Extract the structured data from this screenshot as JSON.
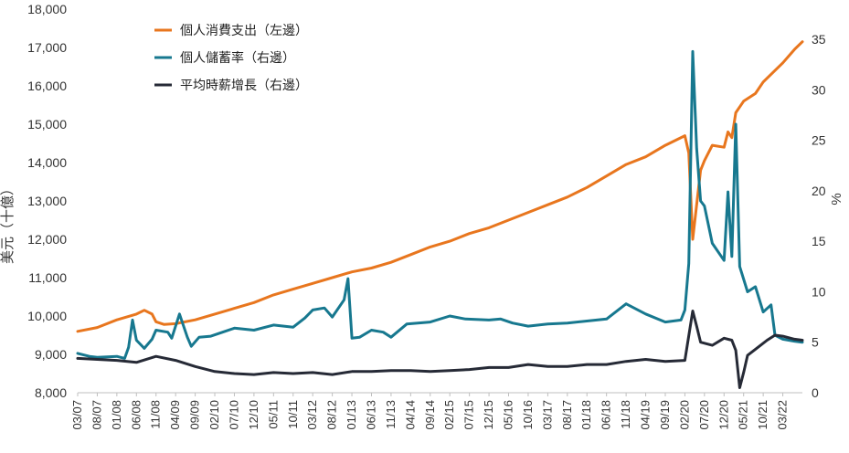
{
  "chart_data": {
    "type": "line",
    "title": "",
    "ylabel_left": "美元（十億）",
    "ylabel_right": "%",
    "ylim_left": [
      8000,
      18000
    ],
    "ylim_right": [
      0,
      38
    ],
    "yticks_left": [
      "8,000",
      "9,000",
      "10,000",
      "11,000",
      "12,000",
      "13,000",
      "14,000",
      "15,000",
      "16,000",
      "17,000",
      "18,000"
    ],
    "yticks_right": [
      "0",
      "5",
      "10",
      "15",
      "20",
      "25",
      "30",
      "35"
    ],
    "x_start": "2007-03",
    "x_end": "2022-08",
    "xtick_labels": [
      "03/07",
      "08/07",
      "01/08",
      "06/08",
      "11/08",
      "04/09",
      "09/09",
      "02/10",
      "07/10",
      "12/10",
      "05/11",
      "10/11",
      "03/12",
      "08/12",
      "01/13",
      "06/13",
      "11/13",
      "04/14",
      "09/14",
      "02/15",
      "07/15",
      "12/15",
      "05/16",
      "10/16",
      "03/17",
      "08/17",
      "01/18",
      "06/18",
      "11/18",
      "04/19",
      "09/19",
      "02/20",
      "07/20",
      "12/20",
      "05/21",
      "10/21",
      "03/22"
    ],
    "legend_position": "top-left",
    "colors": {
      "consumption": "#E8761E",
      "savings": "#17788F",
      "wages": "#262A36"
    },
    "series": [
      {
        "name": "個人消費支出（左邊）",
        "axis": "left",
        "points": [
          [
            "2007-03",
            9600
          ],
          [
            "2007-08",
            9700
          ],
          [
            "2008-01",
            9900
          ],
          [
            "2008-06",
            10050
          ],
          [
            "2008-08",
            10150
          ],
          [
            "2008-10",
            10050
          ],
          [
            "2008-11",
            9850
          ],
          [
            "2009-01",
            9780
          ],
          [
            "2009-04",
            9800
          ],
          [
            "2009-09",
            9900
          ],
          [
            "2010-02",
            10050
          ],
          [
            "2010-07",
            10200
          ],
          [
            "2010-12",
            10350
          ],
          [
            "2011-05",
            10550
          ],
          [
            "2011-10",
            10700
          ],
          [
            "2012-03",
            10850
          ],
          [
            "2012-08",
            11000
          ],
          [
            "2013-01",
            11150
          ],
          [
            "2013-06",
            11250
          ],
          [
            "2013-11",
            11400
          ],
          [
            "2014-04",
            11600
          ],
          [
            "2014-09",
            11800
          ],
          [
            "2015-02",
            11950
          ],
          [
            "2015-07",
            12150
          ],
          [
            "2015-12",
            12300
          ],
          [
            "2016-05",
            12500
          ],
          [
            "2016-10",
            12700
          ],
          [
            "2017-03",
            12900
          ],
          [
            "2017-08",
            13100
          ],
          [
            "2018-01",
            13350
          ],
          [
            "2018-06",
            13650
          ],
          [
            "2018-11",
            13950
          ],
          [
            "2019-04",
            14150
          ],
          [
            "2019-09",
            14450
          ],
          [
            "2020-02",
            14700
          ],
          [
            "2020-03",
            14250
          ],
          [
            "2020-04",
            12000
          ],
          [
            "2020-05",
            12900
          ],
          [
            "2020-06",
            13800
          ],
          [
            "2020-07",
            14050
          ],
          [
            "2020-09",
            14450
          ],
          [
            "2020-12",
            14400
          ],
          [
            "2021-01",
            14800
          ],
          [
            "2021-02",
            14650
          ],
          [
            "2021-03",
            15300
          ],
          [
            "2021-05",
            15600
          ],
          [
            "2021-08",
            15800
          ],
          [
            "2021-10",
            16100
          ],
          [
            "2022-01",
            16400
          ],
          [
            "2022-03",
            16600
          ],
          [
            "2022-06",
            16950
          ],
          [
            "2022-08",
            17150
          ]
        ]
      },
      {
        "name": "個人儲蓄率（右邊）",
        "axis": "right",
        "points": [
          [
            "2007-03",
            3.9
          ],
          [
            "2007-06",
            3.6
          ],
          [
            "2007-08",
            3.5
          ],
          [
            "2008-01",
            3.6
          ],
          [
            "2008-03",
            3.4
          ],
          [
            "2008-04",
            4.5
          ],
          [
            "2008-05",
            7.2
          ],
          [
            "2008-06",
            5.2
          ],
          [
            "2008-08",
            4.4
          ],
          [
            "2008-10",
            5.3
          ],
          [
            "2008-11",
            6.2
          ],
          [
            "2009-02",
            6.0
          ],
          [
            "2009-03",
            5.4
          ],
          [
            "2009-05",
            7.8
          ],
          [
            "2009-07",
            5.5
          ],
          [
            "2009-08",
            4.6
          ],
          [
            "2009-10",
            5.5
          ],
          [
            "2010-01",
            5.6
          ],
          [
            "2010-04",
            6.0
          ],
          [
            "2010-07",
            6.4
          ],
          [
            "2010-12",
            6.2
          ],
          [
            "2011-05",
            6.7
          ],
          [
            "2011-10",
            6.5
          ],
          [
            "2012-01",
            7.4
          ],
          [
            "2012-03",
            8.2
          ],
          [
            "2012-06",
            8.4
          ],
          [
            "2012-08",
            7.5
          ],
          [
            "2012-11",
            9.2
          ],
          [
            "2012-12",
            11.3
          ],
          [
            "2013-01",
            5.4
          ],
          [
            "2013-03",
            5.5
          ],
          [
            "2013-06",
            6.2
          ],
          [
            "2013-09",
            6.0
          ],
          [
            "2013-11",
            5.5
          ],
          [
            "2014-03",
            6.8
          ],
          [
            "2014-09",
            7.0
          ],
          [
            "2015-02",
            7.6
          ],
          [
            "2015-06",
            7.3
          ],
          [
            "2015-12",
            7.2
          ],
          [
            "2016-03",
            7.3
          ],
          [
            "2016-06",
            6.9
          ],
          [
            "2016-10",
            6.6
          ],
          [
            "2017-03",
            6.8
          ],
          [
            "2017-08",
            6.9
          ],
          [
            "2018-01",
            7.1
          ],
          [
            "2018-06",
            7.3
          ],
          [
            "2018-11",
            8.8
          ],
          [
            "2019-04",
            7.8
          ],
          [
            "2019-09",
            7.0
          ],
          [
            "2020-01",
            7.2
          ],
          [
            "2020-02",
            8.2
          ],
          [
            "2020-03",
            12.8
          ],
          [
            "2020-04",
            33.8
          ],
          [
            "2020-05",
            24.2
          ],
          [
            "2020-06",
            19.0
          ],
          [
            "2020-07",
            18.5
          ],
          [
            "2020-09",
            14.8
          ],
          [
            "2020-12",
            13.1
          ],
          [
            "2021-01",
            19.9
          ],
          [
            "2021-02",
            13.5
          ],
          [
            "2021-03",
            26.6
          ],
          [
            "2021-04",
            12.5
          ],
          [
            "2021-06",
            10.0
          ],
          [
            "2021-08",
            10.5
          ],
          [
            "2021-10",
            8.0
          ],
          [
            "2021-12",
            8.7
          ],
          [
            "2022-01",
            5.7
          ],
          [
            "2022-03",
            5.3
          ],
          [
            "2022-06",
            5.1
          ],
          [
            "2022-08",
            5.0
          ]
        ]
      },
      {
        "name": "平均時薪增長（右邊）",
        "axis": "right",
        "points": [
          [
            "2007-03",
            3.4
          ],
          [
            "2007-08",
            3.3
          ],
          [
            "2008-01",
            3.2
          ],
          [
            "2008-06",
            3.0
          ],
          [
            "2008-11",
            3.6
          ],
          [
            "2009-04",
            3.2
          ],
          [
            "2009-09",
            2.6
          ],
          [
            "2010-02",
            2.1
          ],
          [
            "2010-07",
            1.9
          ],
          [
            "2010-12",
            1.8
          ],
          [
            "2011-05",
            2.0
          ],
          [
            "2011-10",
            1.9
          ],
          [
            "2012-03",
            2.0
          ],
          [
            "2012-08",
            1.8
          ],
          [
            "2013-01",
            2.1
          ],
          [
            "2013-06",
            2.1
          ],
          [
            "2013-11",
            2.2
          ],
          [
            "2014-04",
            2.2
          ],
          [
            "2014-09",
            2.1
          ],
          [
            "2015-02",
            2.2
          ],
          [
            "2015-07",
            2.3
          ],
          [
            "2015-12",
            2.5
          ],
          [
            "2016-05",
            2.5
          ],
          [
            "2016-10",
            2.8
          ],
          [
            "2017-03",
            2.6
          ],
          [
            "2017-08",
            2.6
          ],
          [
            "2018-01",
            2.8
          ],
          [
            "2018-06",
            2.8
          ],
          [
            "2018-11",
            3.1
          ],
          [
            "2019-04",
            3.3
          ],
          [
            "2019-09",
            3.1
          ],
          [
            "2020-02",
            3.2
          ],
          [
            "2020-04",
            8.1
          ],
          [
            "2020-05",
            6.6
          ],
          [
            "2020-06",
            5.0
          ],
          [
            "2020-09",
            4.7
          ],
          [
            "2020-12",
            5.4
          ],
          [
            "2021-02",
            5.2
          ],
          [
            "2021-03",
            4.2
          ],
          [
            "2021-04",
            0.5
          ],
          [
            "2021-05",
            2.0
          ],
          [
            "2021-06",
            3.7
          ],
          [
            "2021-09",
            4.6
          ],
          [
            "2021-11",
            5.2
          ],
          [
            "2022-01",
            5.7
          ],
          [
            "2022-03",
            5.6
          ],
          [
            "2022-06",
            5.3
          ],
          [
            "2022-08",
            5.2
          ]
        ]
      }
    ]
  }
}
